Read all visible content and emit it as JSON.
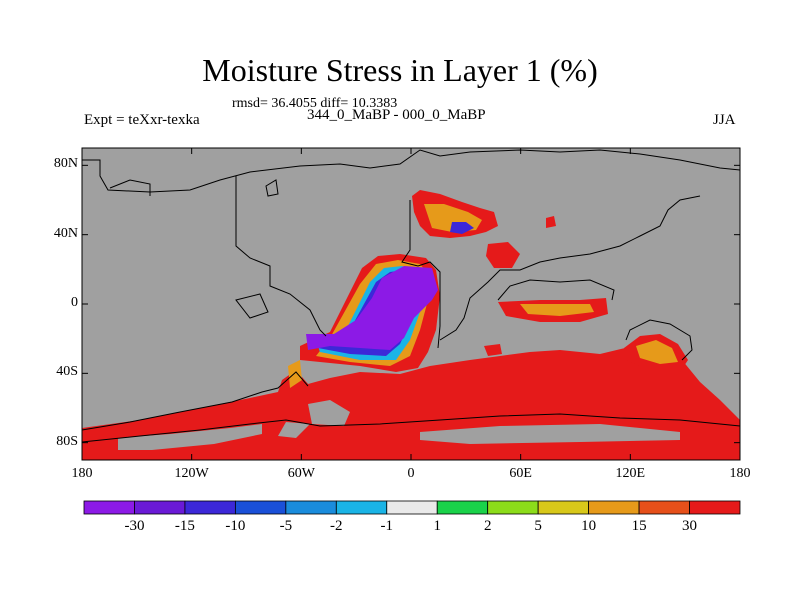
{
  "title": "Moisture Stress in Layer 1 (%)",
  "stats": "rmsd= 36.4055 diff= 10.3383",
  "expt": "Expt = teXxr-texka",
  "period": "344_0_MaBP - 000_0_MaBP",
  "season": "JJA",
  "map": {
    "projection": "cylindrical-equidistant",
    "lon_range": [
      -180,
      180
    ],
    "lat_range": [
      -90,
      90
    ],
    "colors": {
      "land_missing": "#a0a0a0",
      "ocean_positive": "#e51a1a",
      "coastline": "#000000"
    },
    "lat_ticks": [
      {
        "value": 80,
        "label": "80N"
      },
      {
        "value": 40,
        "label": "40N"
      },
      {
        "value": 0,
        "label": "0"
      },
      {
        "value": -40,
        "label": "40S"
      },
      {
        "value": -80,
        "label": "80S"
      }
    ],
    "lon_ticks": [
      {
        "value": -180,
        "label": "180"
      },
      {
        "value": -120,
        "label": "120W"
      },
      {
        "value": -60,
        "label": "60W"
      },
      {
        "value": 0,
        "label": "0"
      },
      {
        "value": 60,
        "label": "60E"
      },
      {
        "value": 120,
        "label": "120E"
      },
      {
        "value": 180,
        "label": "180"
      }
    ]
  },
  "colorbar": {
    "colors": [
      "#8c1ae6",
      "#6a1ad6",
      "#3c28d8",
      "#1a50d8",
      "#1a8cdc",
      "#1ab4e6",
      "#eaeaea",
      "#1ad24a",
      "#8cdc1a",
      "#d8c81a",
      "#e69a1a",
      "#e6501a",
      "#e51a1a"
    ],
    "labels": [
      "-30",
      "-15",
      "-10",
      "-5",
      "-2",
      "-1",
      "1",
      "2",
      "5",
      "10",
      "15",
      "30"
    ]
  }
}
